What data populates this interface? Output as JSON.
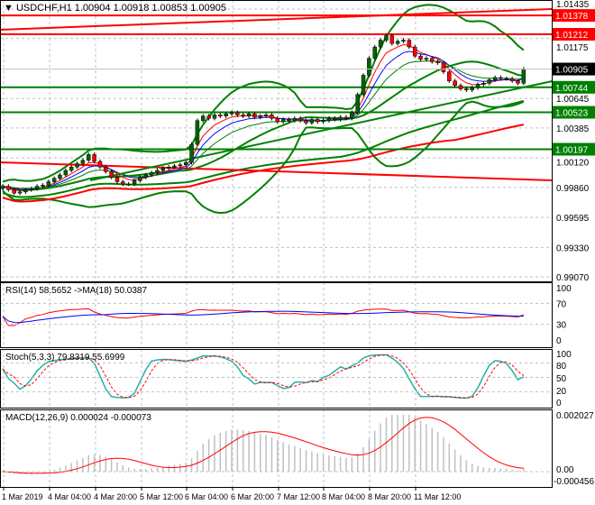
{
  "header": {
    "symbol_label": "USDCHF,H1",
    "ohlc": "1.00904 1.00918 1.00853 1.00905"
  },
  "colors": {
    "bull": "#006400",
    "bear": "#ff0000",
    "band": "#008000",
    "support": "#008000",
    "resistance": "#ff0000",
    "last_price": "#000000",
    "rsi": "#ff0000",
    "rsi_ma": "#0000ff",
    "stoch_main": "#20b2aa",
    "stoch_signal": "#ff0000",
    "macd_hist": "#c0c0c0",
    "macd_signal": "#ff0000"
  },
  "chart_data": [
    {
      "type": "candlestick",
      "title": "USDCHF,H1",
      "x_tick_labels": [
        "1 Mar 2019",
        "4 Mar 04:00",
        "4 Mar 20:00",
        "5 Mar 12:00",
        "6 Mar 04:00",
        "6 Mar 20:00",
        "7 Mar 12:00",
        "8 Mar 04:00",
        "8 Mar 20:00",
        "11 Mar 12:00"
      ],
      "y_tick_labels": [
        "1.01435",
        "1.01175",
        "1.00645",
        "1.00385",
        "1.00120",
        "0.99860",
        "0.99595",
        "0.99330",
        "0.99070"
      ],
      "ylim": [
        0.9902,
        1.0152
      ],
      "grid": true,
      "close": [
        0.9987,
        0.9984,
        0.9981,
        0.9982,
        0.9984,
        0.9985,
        0.9987,
        0.9988,
        0.9991,
        0.9994,
        0.9997,
        1.0001,
        1.0004,
        1.0007,
        1.001,
        1.0015,
        1.0009,
        1.0004,
        1.0,
        0.9995,
        0.9991,
        0.9989,
        0.9989,
        0.9992,
        0.9995,
        0.9997,
        0.9999,
        1.0001,
        1.0003,
        1.0004,
        1.0005,
        1.0006,
        1.0008,
        1.0024,
        1.0045,
        1.0049,
        1.0047,
        1.005,
        1.0049,
        1.0051,
        1.0052,
        1.005,
        1.0049,
        1.0051,
        1.0048,
        1.0049,
        1.005,
        1.0047,
        1.0044,
        1.0046,
        1.0045,
        1.0047,
        1.0045,
        1.0043,
        1.0046,
        1.0044,
        1.0045,
        1.0047,
        1.0046,
        1.0048,
        1.0047,
        1.0052,
        1.0068,
        1.0085,
        1.01,
        1.011,
        1.0116,
        1.012,
        1.0113,
        1.0115,
        1.0116,
        1.011,
        1.0102,
        1.0099,
        1.01,
        1.0097,
        1.0096,
        1.0088,
        1.008,
        1.0076,
        1.0073,
        1.0072,
        1.0074,
        1.0077,
        1.0078,
        1.0081,
        1.0083,
        1.0082,
        1.0082,
        1.008,
        1.0078,
        1.00905
      ],
      "last_price": {
        "value": 1.00905,
        "label": "1.00905"
      },
      "levels": [
        {
          "value": 1.01378,
          "label": "1.01378",
          "kind": "resistance"
        },
        {
          "value": 1.01212,
          "label": "1.01212",
          "kind": "resistance"
        },
        {
          "value": 1.00744,
          "label": "1.00744",
          "kind": "support"
        },
        {
          "value": 1.00523,
          "label": "1.00523",
          "kind": "support"
        },
        {
          "value": 1.00197,
          "label": "1.00197",
          "kind": "support"
        }
      ],
      "trendlines": [
        {
          "from": [
            -0.5,
            1.01252
          ],
          "to": [
            96,
            1.01435
          ],
          "kind": "resistance"
        },
        {
          "from": [
            -0.5,
            1.00082
          ],
          "to": [
            96,
            0.99922
          ],
          "kind": "resistance"
        },
        {
          "from": [
            15.3,
            0.99922
          ],
          "to": [
            96,
            1.00798
          ],
          "kind": "support"
        }
      ]
    },
    {
      "type": "line",
      "title": "RSI(14) 58.5652  ->MA(18) 50.0387",
      "y_tick_labels": [
        "100",
        "70",
        "30",
        "0"
      ],
      "ylim": [
        0,
        100
      ]
    },
    {
      "type": "line",
      "title": "Stoch(5,3,3) 79.8319 55.6999",
      "y_tick_labels": [
        "100",
        "80",
        "50",
        "20",
        "0"
      ],
      "ylim": [
        0,
        100
      ]
    },
    {
      "type": "bar",
      "title": "MACD(12,26,9) 0.000024 -0.000073",
      "y_tick_labels": [
        "0.002027",
        "0.00",
        "-0.000456"
      ],
      "ylim": [
        -0.000456,
        0.002027
      ]
    }
  ]
}
